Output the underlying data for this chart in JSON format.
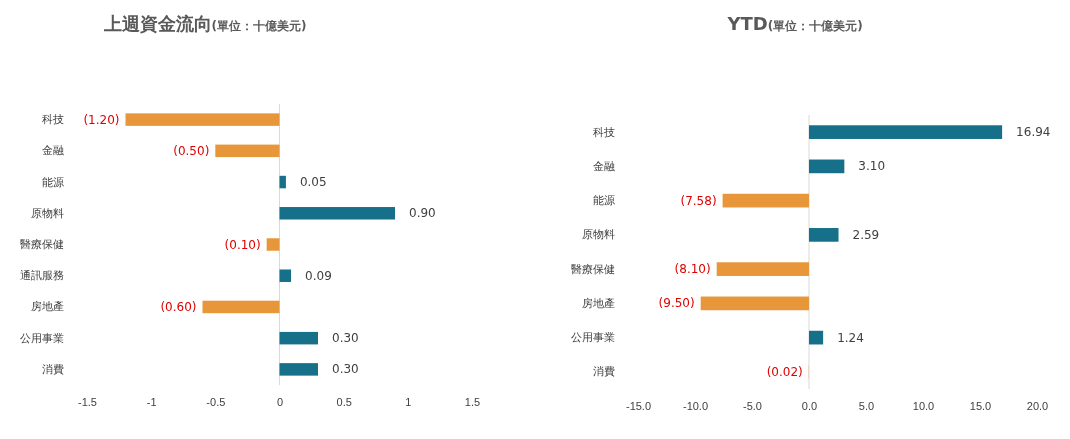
{
  "chart_data": [
    {
      "type": "bar",
      "orientation": "horizontal",
      "title": "上週資金流向",
      "subtitle": "(單位：十億美元)",
      "categories": [
        "科技",
        "金融",
        "能源",
        "原物料",
        "醫療保健",
        "通訊服務",
        "房地產",
        "公用事業",
        "消費"
      ],
      "values": [
        -1.2,
        -0.5,
        0.05,
        0.9,
        -0.1,
        0.09,
        -0.6,
        0.3,
        0.3
      ],
      "colors": [
        "#e8963a",
        "#e8963a",
        "#167089",
        "#167089",
        "#e8963a",
        "#167089",
        "#e8963a",
        "#167089",
        "#167089"
      ],
      "value_labels": [
        "(1.20)",
        "(0.50)",
        "0.05",
        "0.90",
        "(0.10)",
        "0.09",
        "(0.60)",
        "0.30",
        "0.30"
      ],
      "xlim": [
        -1.5,
        1.5
      ],
      "xticks": [
        -1.5,
        -1,
        -0.5,
        0,
        0.5,
        1,
        1.5
      ]
    },
    {
      "type": "bar",
      "orientation": "horizontal",
      "title": "YTD",
      "subtitle": "(單位：十億美元)",
      "categories": [
        "科技",
        "金融",
        "能源",
        "原物料",
        "醫療保健",
        "房地產",
        "公用事業",
        "消費"
      ],
      "values": [
        16.94,
        3.1,
        -7.58,
        2.59,
        -8.1,
        -9.5,
        1.24,
        -0.02
      ],
      "colors": [
        "#167089",
        "#167089",
        "#e8963a",
        "#167089",
        "#e8963a",
        "#e8963a",
        "#167089",
        "#e8963a"
      ],
      "value_labels": [
        "16.94",
        "3.10",
        "(7.58)",
        "2.59",
        "(8.10)",
        "(9.50)",
        "1.24",
        "(0.02)"
      ],
      "xlim": [
        -15,
        20
      ],
      "xticks": [
        {
          "value": -15,
          "label": "-15.0"
        },
        {
          "value": -10,
          "label": "-10.0"
        },
        {
          "value": -5,
          "label": "-5.0"
        },
        {
          "value": 0,
          "label": "0.0"
        },
        {
          "value": 5,
          "label": "5.0"
        },
        {
          "value": 10,
          "label": "10.0"
        },
        {
          "value": 15,
          "label": "15.0"
        },
        {
          "value": 20,
          "label": "20.0"
        }
      ]
    }
  ]
}
